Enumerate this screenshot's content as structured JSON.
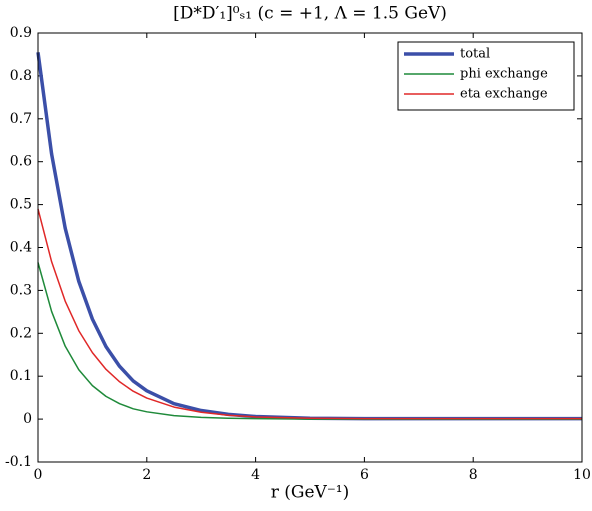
{
  "chart_data": {
    "type": "line",
    "title": "[D*D′₁]⁰ₛ₁ (c = +1, Λ = 1.5 GeV)",
    "x_label": "r (GeV⁻¹)",
    "x": [
      0,
      0.25,
      0.5,
      0.75,
      1,
      1.25,
      1.5,
      1.75,
      2,
      2.5,
      3,
      3.5,
      4,
      5,
      6,
      7,
      8,
      9,
      10
    ],
    "series": [
      {
        "name": "total",
        "color": "#3b4fa8",
        "width": 3.5,
        "values": [
          0.855,
          0.618,
          0.445,
          0.321,
          0.233,
          0.169,
          0.123,
          0.089,
          0.066,
          0.036,
          0.02,
          0.011,
          0.006,
          0.002,
          0.001,
          0.001,
          0.001,
          0.001,
          0.001
        ]
      },
      {
        "name": "phi exchange",
        "color": "#1f8a3a",
        "width": 1.5,
        "values": [
          0.365,
          0.251,
          0.17,
          0.115,
          0.078,
          0.053,
          0.036,
          0.024,
          0.017,
          0.008,
          0.004,
          0.002,
          0.001,
          0,
          0,
          0,
          0,
          0,
          0
        ]
      },
      {
        "name": "eta exchange",
        "color": "#e02828",
        "width": 1.5,
        "values": [
          0.49,
          0.367,
          0.275,
          0.206,
          0.155,
          0.116,
          0.087,
          0.065,
          0.049,
          0.028,
          0.016,
          0.009,
          0.005,
          0.002,
          0.001,
          0.001,
          0.001,
          0.001,
          0.001
        ]
      }
    ],
    "xlim": [
      0,
      10
    ],
    "xticks": [
      0,
      2,
      4,
      6,
      8,
      10
    ],
    "ylim": [
      -0.1,
      0.9
    ],
    "yticks": [
      -0.1,
      0,
      0.1,
      0.2,
      0.3,
      0.4,
      0.5,
      0.6,
      0.7,
      0.8,
      0.9
    ],
    "grid": false,
    "legend": "upper right"
  }
}
